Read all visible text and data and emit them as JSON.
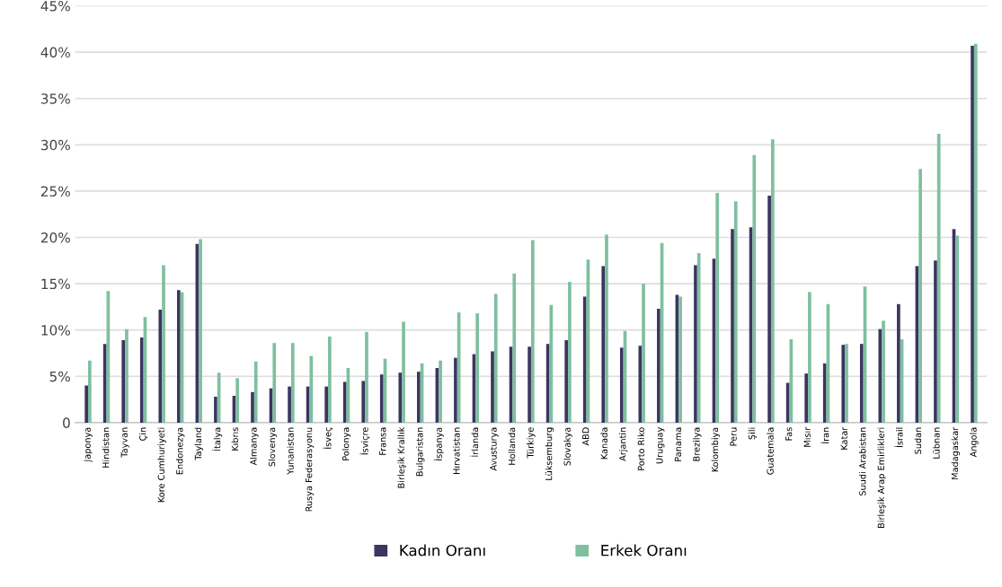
{
  "chart_data": {
    "type": "bar",
    "categories": [
      "Japonya",
      "Hindistan",
      "Tayvan",
      "Çin",
      "Kore Cumhuriyeti",
      "Endonezya",
      "Tayland",
      "İtalya",
      "Kıbrıs",
      "Almanya",
      "Slovenya",
      "Yunanistan",
      "Rusya Federasyonu",
      "İsveç",
      "Polonya",
      "İsviçre",
      "Fransa",
      "Birleşik Krallık",
      "Bulgaristan",
      "İspanya",
      "Hırvatistan",
      "İrlanda",
      "Avusturya",
      "Hollanda",
      "Türkiye",
      "Lüksemburg",
      "Slovakya",
      "ABD",
      "Kanada",
      "Arjantin",
      "Porto Riko",
      "Uruguay",
      "Panama",
      "Brezilya",
      "Kolombiya",
      "Peru",
      "Şili",
      "Guatemala",
      "Fas",
      "Mısır",
      "İran",
      "Katar",
      "Suudi Arabistan",
      "Birleşik Arap Emirlikleri",
      "İsrail",
      "Sudan",
      "Lübnan",
      "Madagaskar",
      "Angola"
    ],
    "series": [
      {
        "name": "Kadın Oranı",
        "color": "#3b3561",
        "values": [
          4.0,
          8.5,
          8.9,
          9.2,
          12.2,
          14.3,
          19.3,
          2.8,
          2.9,
          3.3,
          3.7,
          3.9,
          3.9,
          3.9,
          4.4,
          4.5,
          5.2,
          5.4,
          5.5,
          5.9,
          7.0,
          7.4,
          7.7,
          8.2,
          8.2,
          8.5,
          8.9,
          13.6,
          16.9,
          8.1,
          8.3,
          12.3,
          13.8,
          17.0,
          17.7,
          20.9,
          21.1,
          24.5,
          4.3,
          5.3,
          6.4,
          8.4,
          8.5,
          10.1,
          12.8,
          16.9,
          17.5,
          20.9,
          40.7
        ]
      },
      {
        "name": "Erkek Oranı",
        "color": "#7fbf9f",
        "values": [
          6.7,
          14.2,
          10.1,
          11.4,
          17.0,
          14.1,
          19.8,
          5.4,
          4.8,
          6.6,
          8.6,
          8.6,
          7.2,
          9.3,
          5.9,
          9.8,
          6.9,
          10.9,
          6.4,
          6.7,
          11.9,
          11.8,
          13.9,
          16.1,
          19.7,
          12.7,
          15.2,
          17.6,
          20.3,
          9.9,
          15.0,
          19.4,
          13.6,
          18.3,
          24.8,
          23.9,
          28.9,
          30.6,
          9.0,
          14.1,
          12.8,
          8.5,
          14.7,
          11.0,
          9.0,
          27.4,
          31.2,
          20.2,
          40.9
        ]
      }
    ],
    "ylim": [
      0,
      45
    ],
    "yticks": [
      0,
      {
        "value": 5,
        "label": "5%"
      },
      {
        "value": 10,
        "label": "10%"
      },
      {
        "value": 15,
        "label": "15%"
      },
      {
        "value": 20,
        "label": "20%"
      },
      {
        "value": 25,
        "label": "25%"
      },
      {
        "value": 30,
        "label": "30%"
      },
      {
        "value": 35,
        "label": "35%"
      },
      {
        "value": 40,
        "label": "40%"
      },
      {
        "value": 45,
        "label": "45%"
      }
    ],
    "grid": "y",
    "legend": "bottom"
  }
}
